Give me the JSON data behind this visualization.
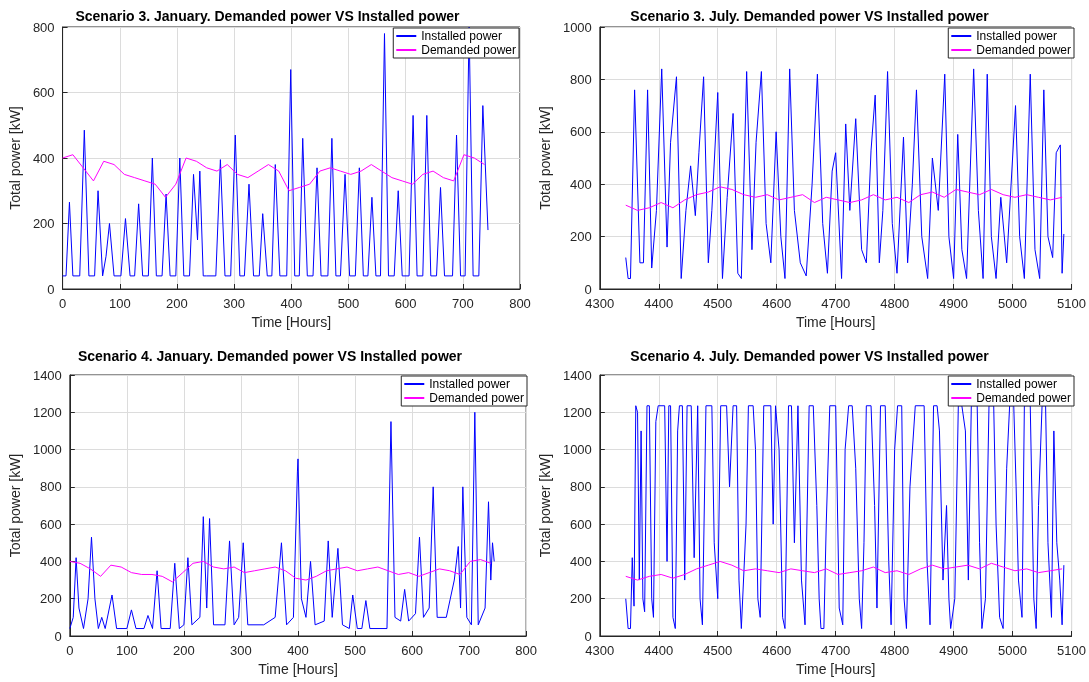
{
  "chart_data": [
    {
      "type": "line",
      "title": "Scenario 3. January. Demanded power VS Installed power",
      "xlabel": "Time [Hours]",
      "ylabel": "Total power [kW]",
      "xlim": [
        0,
        800
      ],
      "xticks": [
        0,
        100,
        200,
        300,
        400,
        500,
        600,
        700,
        800
      ],
      "ylim": [
        0,
        800
      ],
      "yticks": [
        0,
        200,
        400,
        600,
        800
      ],
      "grid": true,
      "legend": "top right",
      "marker": "none",
      "series": [
        {
          "name": "Installed power",
          "color": "#0000ff",
          "x": [
            0,
            6,
            12,
            18,
            30,
            38,
            46,
            56,
            62,
            70,
            76,
            82,
            90,
            102,
            110,
            118,
            126,
            133,
            140,
            150,
            157,
            164,
            174,
            181,
            188,
            198,
            205,
            212,
            222,
            229,
            236,
            240,
            246,
            252,
            268,
            276,
            284,
            294,
            302,
            310,
            318,
            326,
            334,
            344,
            350,
            358,
            366,
            372,
            380,
            392,
            399,
            406,
            414,
            420,
            428,
            438,
            445,
            452,
            464,
            471,
            478,
            486,
            494,
            502,
            512,
            519,
            526,
            534,
            541,
            548,
            556,
            563,
            570,
            580,
            587,
            594,
            606,
            613,
            620,
            630,
            637,
            644,
            654,
            661,
            668,
            682,
            689,
            696,
            704,
            711,
            718,
            728,
            735,
            744
          ],
          "values": [
            40,
            40,
            265,
            40,
            40,
            485,
            40,
            40,
            300,
            40,
            100,
            200,
            40,
            40,
            215,
            40,
            40,
            260,
            40,
            40,
            400,
            40,
            40,
            290,
            40,
            40,
            400,
            40,
            40,
            350,
            150,
            360,
            40,
            40,
            40,
            395,
            40,
            40,
            470,
            40,
            40,
            320,
            40,
            40,
            230,
            40,
            40,
            380,
            40,
            40,
            670,
            40,
            40,
            460,
            40,
            40,
            370,
            40,
            40,
            460,
            40,
            40,
            350,
            40,
            40,
            370,
            40,
            40,
            280,
            40,
            40,
            780,
            40,
            40,
            300,
            40,
            40,
            530,
            40,
            40,
            530,
            40,
            40,
            310,
            40,
            40,
            470,
            40,
            40,
            800,
            40,
            40,
            560,
            180
          ]
        },
        {
          "name": "Demanded power",
          "color": "#ff00ff",
          "x": [
            0,
            18,
            36,
            54,
            72,
            90,
            108,
            126,
            144,
            162,
            180,
            198,
            216,
            234,
            252,
            270,
            288,
            306,
            324,
            342,
            360,
            378,
            396,
            414,
            432,
            450,
            468,
            486,
            504,
            522,
            540,
            558,
            576,
            594,
            612,
            630,
            648,
            666,
            684,
            702,
            720,
            738
          ],
          "values": [
            400,
            410,
            370,
            330,
            390,
            380,
            350,
            340,
            330,
            320,
            280,
            320,
            400,
            390,
            370,
            360,
            380,
            350,
            340,
            360,
            380,
            360,
            300,
            310,
            320,
            360,
            370,
            360,
            350,
            360,
            380,
            360,
            340,
            330,
            320,
            350,
            360,
            340,
            330,
            410,
            400,
            380
          ]
        }
      ]
    },
    {
      "type": "line",
      "title": "Scenario 3. July. Demanded power VS Installed power",
      "xlabel": "Time [Hours]",
      "ylabel": "Total power [kW]",
      "xlim": [
        4300,
        5100
      ],
      "xticks": [
        4300,
        4400,
        4500,
        4600,
        4700,
        4800,
        4900,
        5000,
        5100
      ],
      "ylim": [
        0,
        1000
      ],
      "yticks": [
        0,
        200,
        400,
        600,
        800,
        1000
      ],
      "grid": true,
      "legend": "top right",
      "marker": "none",
      "series": [
        {
          "name": "Installed power",
          "color": "#0000ff",
          "x": [
            4344,
            4348,
            4352,
            4359,
            4368,
            4374,
            4381,
            4388,
            4396,
            4405,
            4414,
            4420,
            4430,
            4438,
            4446,
            4454,
            4462,
            4468,
            4476,
            4484,
            4490,
            4500,
            4508,
            4516,
            4526,
            4534,
            4540,
            4549,
            4558,
            4565,
            4574,
            4582,
            4590,
            4599,
            4607,
            4614,
            4622,
            4630,
            4640,
            4650,
            4660,
            4669,
            4678,
            4686,
            4694,
            4700,
            4710,
            4717,
            4724,
            4734,
            4744,
            4752,
            4760,
            4767,
            4774,
            4780,
            4788,
            4796,
            4804,
            4815,
            4822,
            4830,
            4837,
            4846,
            4856,
            4864,
            4874,
            4885,
            4892,
            4900,
            4907,
            4914,
            4922,
            4934,
            4942,
            4950,
            4957,
            4964,
            4972,
            4980,
            4990,
            5005,
            5012,
            5020,
            5030,
            5038,
            5046,
            5053,
            5060,
            5068,
            5074,
            5081,
            5084,
            5087
          ],
          "values": [
            120,
            40,
            40,
            760,
            100,
            100,
            760,
            80,
            300,
            840,
            160,
            560,
            810,
            40,
            300,
            470,
            280,
            520,
            810,
            100,
            300,
            750,
            40,
            350,
            670,
            60,
            40,
            830,
            150,
            560,
            830,
            250,
            100,
            600,
            200,
            40,
            840,
            300,
            100,
            50,
            400,
            820,
            250,
            60,
            450,
            520,
            40,
            630,
            300,
            650,
            150,
            100,
            530,
            740,
            100,
            300,
            830,
            250,
            60,
            580,
            100,
            400,
            760,
            200,
            40,
            500,
            300,
            820,
            200,
            40,
            590,
            150,
            40,
            840,
            300,
            40,
            820,
            200,
            40,
            350,
            100,
            700,
            200,
            40,
            820,
            150,
            40,
            760,
            200,
            120,
            520,
            550,
            60,
            210
          ]
        },
        {
          "name": "Demanded power",
          "color": "#ff00ff",
          "x": [
            4344,
            4364,
            4384,
            4404,
            4424,
            4444,
            4464,
            4484,
            4504,
            4524,
            4544,
            4564,
            4584,
            4604,
            4624,
            4644,
            4664,
            4684,
            4704,
            4724,
            4744,
            4764,
            4784,
            4804,
            4824,
            4844,
            4864,
            4884,
            4904,
            4924,
            4944,
            4964,
            4984,
            5004,
            5024,
            5044,
            5064,
            5084
          ],
          "values": [
            320,
            300,
            310,
            330,
            310,
            340,
            360,
            370,
            390,
            380,
            360,
            350,
            360,
            340,
            350,
            360,
            330,
            350,
            340,
            330,
            340,
            360,
            340,
            350,
            330,
            360,
            370,
            350,
            380,
            370,
            360,
            380,
            360,
            350,
            360,
            350,
            340,
            350
          ]
        }
      ]
    },
    {
      "type": "line",
      "title": "Scenario 4. January. Demanded power VS Installed power",
      "xlabel": "Time [Hours]",
      "ylabel": "Total power [kW]",
      "xlim": [
        0,
        800
      ],
      "xticks": [
        0,
        100,
        200,
        300,
        400,
        500,
        600,
        700,
        800
      ],
      "ylim": [
        0,
        1400
      ],
      "yticks": [
        0,
        200,
        400,
        600,
        800,
        1000,
        1200,
        1400
      ],
      "grid": true,
      "legend": "top right",
      "marker": "none",
      "series": [
        {
          "name": "Installed power",
          "color": "#0000ff",
          "x": [
            0,
            6,
            11,
            16,
            24,
            32,
            38,
            44,
            50,
            56,
            62,
            74,
            82,
            100,
            108,
            116,
            130,
            137,
            145,
            153,
            160,
            176,
            184,
            192,
            200,
            207,
            214,
            228,
            234,
            240,
            245,
            252,
            272,
            280,
            288,
            296,
            304,
            312,
            340,
            360,
            371,
            380,
            392,
            399,
            400,
            406,
            414,
            422,
            430,
            446,
            453,
            460,
            470,
            478,
            490,
            496,
            504,
            512,
            519,
            526,
            556,
            563,
            570,
            580,
            587,
            594,
            606,
            613,
            620,
            630,
            637,
            644,
            660,
            674,
            681,
            685,
            689,
            696,
            704,
            710,
            716,
            728,
            734,
            738,
            741,
            744
          ],
          "values": [
            40,
            100,
            420,
            150,
            40,
            200,
            530,
            200,
            40,
            100,
            40,
            220,
            40,
            40,
            140,
            40,
            40,
            110,
            40,
            350,
            40,
            40,
            390,
            40,
            60,
            420,
            60,
            100,
            640,
            150,
            630,
            60,
            60,
            510,
            60,
            100,
            500,
            60,
            60,
            100,
            500,
            60,
            100,
            880,
            950,
            200,
            100,
            400,
            60,
            80,
            510,
            100,
            470,
            60,
            40,
            220,
            40,
            40,
            190,
            40,
            40,
            1150,
            100,
            80,
            250,
            80,
            120,
            530,
            100,
            150,
            800,
            100,
            100,
            300,
            480,
            150,
            800,
            100,
            60,
            1200,
            60,
            150,
            720,
            300,
            500,
            400
          ]
        },
        {
          "name": "Demanded power",
          "color": "#ff00ff",
          "x": [
            0,
            18,
            36,
            54,
            72,
            90,
            108,
            126,
            144,
            162,
            180,
            198,
            216,
            234,
            252,
            270,
            288,
            306,
            324,
            342,
            360,
            378,
            396,
            414,
            432,
            450,
            468,
            486,
            504,
            522,
            540,
            558,
            576,
            594,
            612,
            630,
            648,
            666,
            684,
            702,
            720,
            738
          ],
          "values": [
            400,
            390,
            360,
            320,
            380,
            370,
            340,
            330,
            330,
            320,
            290,
            340,
            390,
            400,
            370,
            360,
            370,
            340,
            350,
            360,
            370,
            350,
            310,
            300,
            320,
            350,
            360,
            370,
            350,
            360,
            370,
            350,
            330,
            340,
            320,
            340,
            360,
            350,
            330,
            400,
            410,
            390
          ]
        }
      ]
    },
    {
      "type": "line",
      "title": "Scenario 4. July. Demanded power VS Installed power",
      "xlabel": "Time [Hours]",
      "ylabel": "Total power [kW]",
      "xlim": [
        4300,
        5100
      ],
      "xticks": [
        4300,
        4400,
        4500,
        4600,
        4700,
        4800,
        4900,
        5000,
        5100
      ],
      "ylim": [
        0,
        1400
      ],
      "yticks": [
        0,
        200,
        400,
        600,
        800,
        1000,
        1200,
        1400
      ],
      "grid": true,
      "legend": "top right",
      "marker": "none",
      "series": [
        {
          "name": "Installed power",
          "color": "#0000ff",
          "x": [
            4344,
            4348,
            4352,
            4355,
            4358,
            4361,
            4364,
            4367,
            4370,
            4373,
            4376,
            4380,
            4384,
            4388,
            4391,
            4395,
            4399,
            4410,
            4414,
            4417,
            4420,
            4424,
            4428,
            4432,
            4435,
            4440,
            4444,
            4448,
            4455,
            4460,
            4466,
            4470,
            4474,
            4480,
            4490,
            4494,
            4500,
            4505,
            4515,
            4520,
            4526,
            4532,
            4536,
            4540,
            4548,
            4552,
            4560,
            4564,
            4568,
            4572,
            4578,
            4590,
            4594,
            4598,
            4604,
            4610,
            4614,
            4620,
            4625,
            4630,
            4636,
            4642,
            4648,
            4655,
            4662,
            4668,
            4672,
            4675,
            4680,
            4684,
            4690,
            4700,
            4706,
            4712,
            4716,
            4722,
            4728,
            4734,
            4740,
            4744,
            4748,
            4752,
            4760,
            4766,
            4770,
            4776,
            4784,
            4790,
            4794,
            4800,
            4805,
            4812,
            4816,
            4820,
            4826,
            4835,
            4850,
            4855,
            4860,
            4866,
            4872,
            4876,
            4882,
            4888,
            4892,
            4895,
            4902,
            4908,
            4914,
            4920,
            4925,
            4930,
            4940,
            4944,
            4948,
            4954,
            4960,
            4968,
            4972,
            4978,
            4984,
            4990,
            4995,
            5002,
            5006,
            5010,
            5016,
            5020,
            5030,
            5036,
            5040,
            5044,
            5050,
            5056,
            5060,
            5066,
            5070,
            5075,
            5080,
            5084,
            5087
          ],
          "values": [
            200,
            40,
            40,
            420,
            160,
            1235,
            1200,
            300,
            1100,
            200,
            130,
            1235,
            1235,
            200,
            100,
            1150,
            1235,
            1235,
            400,
            1235,
            1235,
            100,
            40,
            1100,
            1235,
            1235,
            300,
            1235,
            1235,
            420,
            1235,
            200,
            60,
            1235,
            1235,
            500,
            200,
            1235,
            1235,
            800,
            1235,
            1235,
            300,
            40,
            600,
            1235,
            1235,
            1000,
            200,
            100,
            1235,
            1235,
            600,
            1235,
            1000,
            100,
            40,
            1235,
            1235,
            500,
            1235,
            300,
            60,
            1235,
            1235,
            700,
            200,
            40,
            40,
            600,
            1235,
            1235,
            150,
            60,
            1000,
            1235,
            1235,
            900,
            200,
            40,
            500,
            1235,
            1235,
            700,
            150,
            1235,
            1235,
            400,
            60,
            1000,
            1235,
            1235,
            200,
            40,
            800,
            1235,
            1235,
            400,
            60,
            1235,
            1235,
            1100,
            300,
            700,
            200,
            40,
            200,
            1235,
            1235,
            1100,
            300,
            1235,
            1235,
            500,
            40,
            200,
            1235,
            1235,
            600,
            100,
            40,
            900,
            1235,
            1235,
            800,
            300,
            100,
            1235,
            1235,
            200,
            40,
            700,
            1235,
            1235,
            500,
            100,
            1100,
            500,
            300,
            60,
            380
          ]
        },
        {
          "name": "Demanded power",
          "color": "#ff00ff",
          "x": [
            4344,
            4364,
            4384,
            4404,
            4424,
            4444,
            4464,
            4484,
            4504,
            4524,
            4544,
            4564,
            4584,
            4604,
            4624,
            4644,
            4664,
            4684,
            4704,
            4724,
            4744,
            4764,
            4784,
            4804,
            4824,
            4844,
            4864,
            4884,
            4904,
            4924,
            4944,
            4964,
            4984,
            5004,
            5024,
            5044,
            5064,
            5084
          ],
          "values": [
            320,
            300,
            320,
            330,
            310,
            330,
            360,
            380,
            400,
            380,
            350,
            360,
            350,
            340,
            360,
            350,
            340,
            360,
            330,
            340,
            350,
            370,
            340,
            350,
            330,
            360,
            380,
            360,
            370,
            380,
            360,
            390,
            370,
            350,
            360,
            340,
            350,
            360
          ]
        }
      ]
    }
  ]
}
